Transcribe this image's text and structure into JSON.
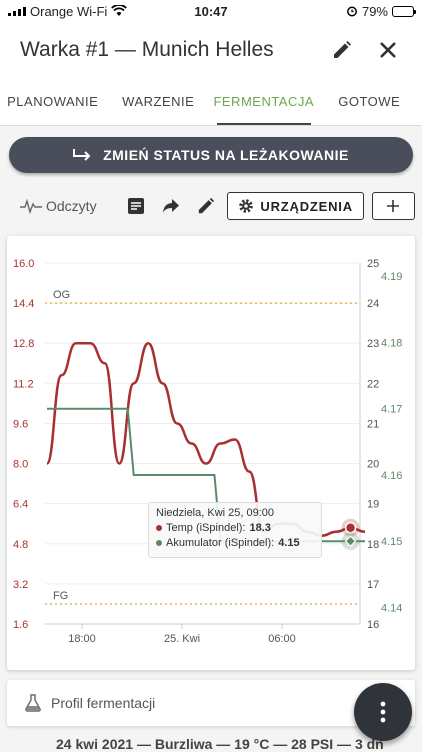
{
  "status_bar": {
    "carrier": "Orange Wi-Fi",
    "time": "10:47",
    "battery": "79%",
    "battery_level": 0.79
  },
  "header": {
    "title": "Warka #1 — Munich Helles"
  },
  "tabs": [
    {
      "label": "PLANOWANIE",
      "active": false
    },
    {
      "label": "WARZENIE",
      "active": false
    },
    {
      "label": "FERMENTACJA",
      "active": true
    },
    {
      "label": "GOTOWE",
      "active": false
    }
  ],
  "status_button": {
    "label": "ZMIEŃ STATUS NA LEŻAKOWANIE"
  },
  "toolbar": {
    "readings_label": "Odczyty",
    "devices_label": "URZĄDZENIA"
  },
  "colors": {
    "temp": "#a93030",
    "gravity": "#5a8a6a",
    "og_line": "#e0c040",
    "accent": "#6aa84f"
  },
  "chart_data": {
    "type": "line",
    "x_ticks": [
      "18:00",
      "25. Kwi",
      "06:00"
    ],
    "y_left": {
      "ticks": [
        "16.0",
        "14.4",
        "12.8",
        "11.2",
        "9.6",
        "8.0",
        "6.4",
        "4.8",
        "3.2",
        "1.6"
      ],
      "range": [
        1.6,
        16.0
      ]
    },
    "y_right1": {
      "ticks": [
        "25",
        "24",
        "23",
        "22",
        "21",
        "20",
        "19",
        "18",
        "17",
        "16"
      ],
      "range": [
        16,
        25
      ]
    },
    "y_right2": {
      "ticks": [
        "4.19",
        "4.18",
        "4.17",
        "4.16",
        "4.15",
        "4.14"
      ],
      "range": [
        4.14,
        4.19
      ]
    },
    "plot_lines": [
      {
        "label": "OG",
        "value": 14.4
      },
      {
        "label": "FG",
        "value": 2.4
      }
    ],
    "series": [
      {
        "name": "Temp (iSpindel)",
        "axis": "right1",
        "values": [
          20,
          22.2,
          23,
          23,
          22.5,
          20,
          22,
          23,
          22,
          21,
          20.5,
          20,
          20.5,
          20.6,
          19.8,
          18.3,
          18.5,
          18.5,
          18.3,
          18.2,
          18.3,
          18.4,
          18.3
        ]
      },
      {
        "name": "Akumulator (iSpindel)",
        "axis": "right2",
        "values": [
          4.17,
          4.17,
          4.17,
          4.17,
          4.17,
          4.17,
          4.16,
          4.16,
          4.16,
          4.16,
          4.16,
          4.16,
          4.15,
          4.15,
          4.15,
          4.15,
          4.15,
          4.15,
          4.15,
          4.15,
          4.15,
          4.15,
          4.15
        ]
      }
    ]
  },
  "tooltip": {
    "date": "Niedziela, Kwi 25, 09:00",
    "temp_label": "Temp (iSpindel):",
    "temp_value": "18.3",
    "battery_label": "Akumulator (iSpindel):",
    "battery_value": "4.15"
  },
  "profile": {
    "label": "Profil fermentacji"
  },
  "footer": {
    "text": "24 kwi 2021 — Burzliwa — 19 °C — 28 PSI — 3 dn"
  }
}
